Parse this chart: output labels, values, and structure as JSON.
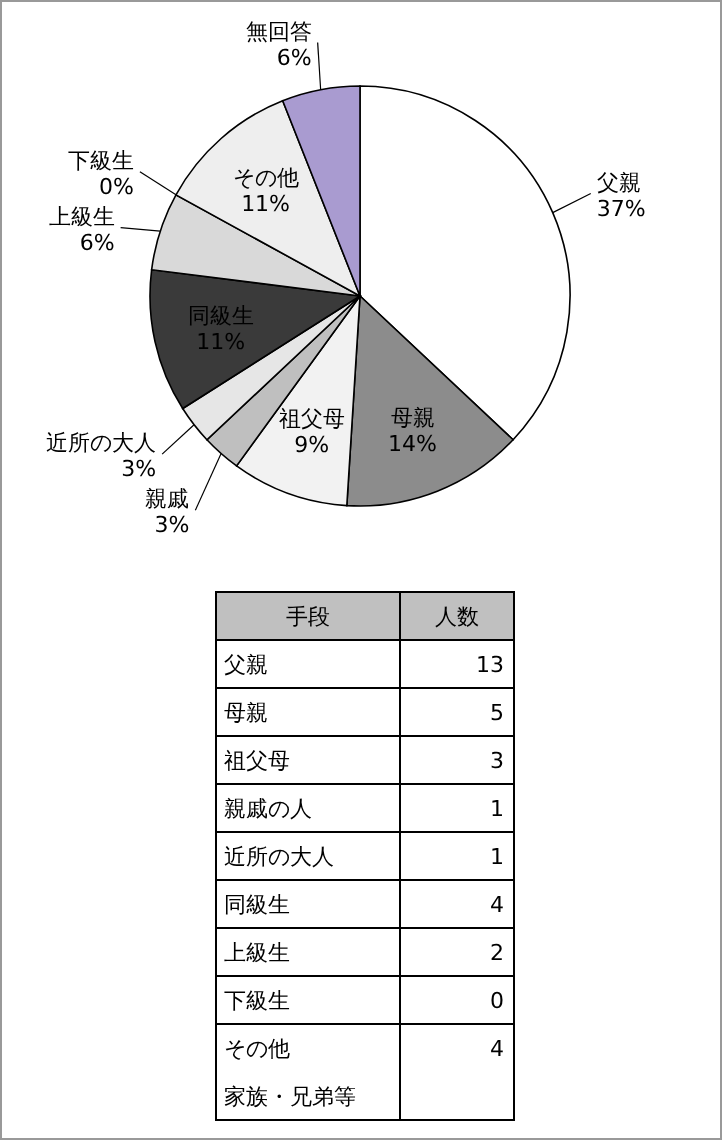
{
  "chart_data": [
    {
      "type": "pie",
      "categories": [
        "父親",
        "母親",
        "祖父母",
        "親戚",
        "近所の大人",
        "同級生",
        "上級生",
        "下級生",
        "その他",
        "無回答"
      ],
      "values": [
        37,
        14,
        9,
        3,
        3,
        11,
        6,
        0,
        11,
        6
      ],
      "value_labels": [
        "37%",
        "14%",
        "9%",
        "3%",
        "3%",
        "11%",
        "6%",
        "0%",
        "11%",
        "6%"
      ],
      "colors": [
        "#ffffff",
        "#8c8c8c",
        "#f2f2f2",
        "#bfbfbf",
        "#e6e6e6",
        "#3a3a3a",
        "#d9d9d9",
        "#cccccc",
        "#eeeeee",
        "#a99bd0"
      ]
    },
    {
      "type": "other",
      "xlabel": "手段",
      "ylabel": "人数",
      "categories": [
        "父親",
        "母親",
        "祖父母",
        "親戚の人",
        "近所の大人",
        "同級生",
        "上級生",
        "下級生",
        "その他"
      ],
      "values": [
        13,
        5,
        3,
        1,
        1,
        4,
        2,
        0,
        4
      ],
      "data_labels": true,
      "annotations": [
        "家族・兄弟等"
      ]
    }
  ]
}
